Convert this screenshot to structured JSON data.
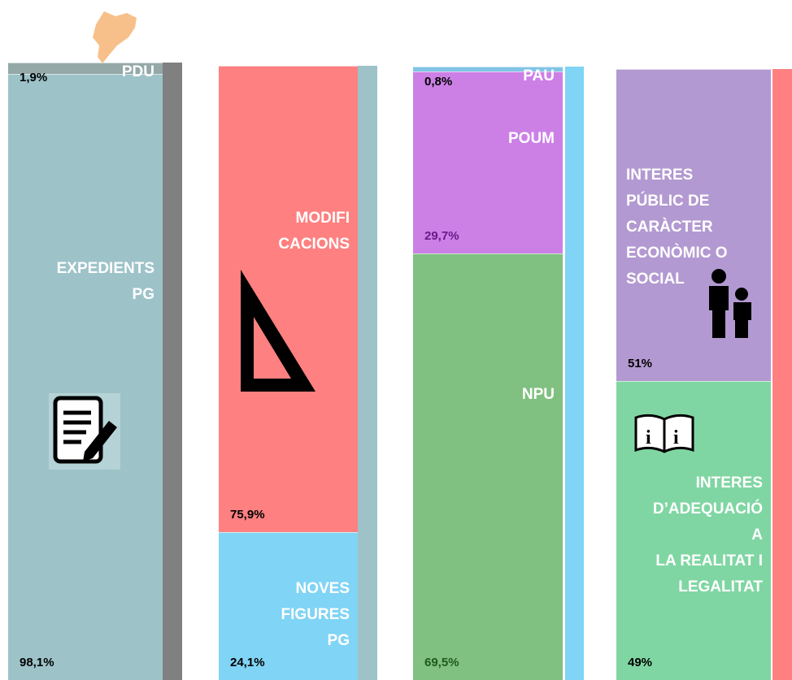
{
  "chart_data": {
    "type": "stacked_column",
    "columns": [
      {
        "names": [
          "PDU",
          "EXPEDIENTS\nPG"
        ],
        "values": [
          1.9,
          98.1
        ],
        "value_labels": [
          "1,9%",
          "98,1%"
        ],
        "colors": [
          "#95a8a8",
          "#9dc3c9"
        ],
        "label_colors": [
          "#000000",
          "#000000"
        ],
        "strip_color": "#808080"
      },
      {
        "names": [
          "MODIFI\nCACIONS",
          "NOVES\nFIGURES\nPG"
        ],
        "values": [
          75.9,
          24.1
        ],
        "value_labels": [
          "75,9%",
          "24,1%"
        ],
        "colors": [
          "#ff8080",
          "#80d4f5"
        ],
        "label_colors": [
          "#000000",
          "#000000"
        ],
        "strip_color": "#9dc3c9"
      },
      {
        "names": [
          "PAU",
          "POUM",
          "NPU"
        ],
        "values": [
          0.8,
          29.7,
          69.5
        ],
        "value_labels": [
          "0,8%",
          "29,7%",
          "69,5%"
        ],
        "colors": [
          "#80c4e6",
          "#cc80e6",
          "#80c080"
        ],
        "label_colors": [
          "#000000",
          "#6a1a8a",
          "#1f5a1f"
        ],
        "strip_color": "#80d4f5"
      },
      {
        "names": [
          "INTERES\nPÚBLIC DE\nCARÀCTER\nECONÒMIC O\nSOCIAL",
          "INTERES\nD’ADEQUACIÓ\nA\nLA REALITAT I\nLEGALITAT"
        ],
        "values": [
          51,
          49
        ],
        "value_labels": [
          "51%",
          "49%"
        ],
        "colors": [
          "#b399d1",
          "#80d6a3"
        ],
        "label_colors": [
          "#000000",
          "#000000"
        ],
        "strip_color": "#ff8080"
      }
    ]
  }
}
